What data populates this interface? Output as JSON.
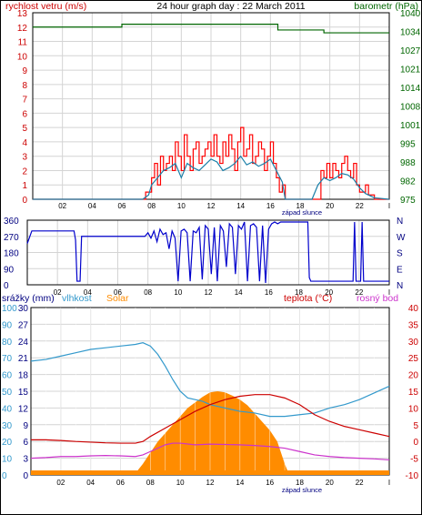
{
  "chart_data": [
    {
      "type": "line",
      "title": "24 hour graph day : 22 March 2011",
      "left_axis_label": "rychlost vetru (m/s)",
      "right_axis_label": "barometr (hPa)",
      "sunset_label": "západ slunce",
      "x_ticks": [
        "02",
        "04",
        "06",
        "08",
        "10",
        "12",
        "14",
        "16",
        "18",
        "20",
        "22",
        "I"
      ],
      "xlim_hours": [
        0,
        24
      ],
      "left_ticks": [
        "0",
        "1",
        "2",
        "3",
        "4",
        "5",
        "6",
        "7",
        "8",
        "9",
        "10",
        "11",
        "12",
        "13"
      ],
      "ylim_left": [
        0,
        13
      ],
      "right_ticks": [
        "975",
        "982",
        "988",
        "995",
        "1001",
        "1008",
        "1014",
        "1021",
        "1027",
        "1034",
        "1040"
      ],
      "ylim_right": [
        975,
        1040
      ],
      "grid": true,
      "series": [
        {
          "name": "rychlost vetru (m/s)",
          "color": "#ff0000",
          "axis": "left",
          "step": true,
          "x": [
            0,
            7.4,
            7.6,
            8.0,
            8.2,
            8.4,
            8.6,
            8.8,
            9.0,
            9.2,
            9.4,
            9.6,
            9.8,
            10.0,
            10.2,
            10.4,
            10.6,
            10.8,
            11.0,
            11.2,
            11.4,
            11.6,
            11.8,
            12.0,
            12.2,
            12.4,
            12.6,
            12.8,
            13.0,
            13.2,
            13.4,
            13.6,
            13.8,
            14.0,
            14.2,
            14.4,
            14.6,
            14.8,
            15.0,
            15.2,
            15.4,
            15.6,
            15.8,
            16.0,
            16.2,
            16.4,
            16.6,
            16.8,
            17.0,
            17.2,
            17.4,
            17.6,
            18.0,
            18.4,
            19.0,
            19.2,
            19.4,
            19.6,
            19.8,
            20.0,
            20.2,
            20.4,
            20.6,
            20.8,
            21.0,
            21.2,
            21.4,
            21.6,
            21.8,
            22.0,
            22.2,
            22.4,
            22.6,
            23.0,
            24.0
          ],
          "y": [
            0,
            0,
            0.5,
            1.5,
            2.5,
            1,
            3,
            2,
            2.5,
            3,
            2,
            4,
            3,
            2,
            4.5,
            3,
            2,
            3.5,
            4,
            2.5,
            3,
            3.5,
            4,
            3,
            4.5,
            3,
            2.5,
            4,
            3,
            4.5,
            3.5,
            2,
            4,
            5,
            3,
            3.5,
            4.5,
            2.5,
            3,
            4,
            3.5,
            2,
            3,
            4,
            2.5,
            1.5,
            0.5,
            1,
            0,
            0,
            0,
            0,
            0,
            0,
            0,
            0,
            2,
            1.5,
            2.5,
            1.5,
            2.5,
            2,
            1.5,
            2.5,
            3,
            2,
            1.5,
            2.5,
            1,
            0.5,
            0.5,
            1,
            0.3,
            0,
            0
          ]
        },
        {
          "name": "wind average",
          "color": "#1a7fa8",
          "axis": "left",
          "x": [
            0,
            7.4,
            7.8,
            8.0,
            8.4,
            8.8,
            9.2,
            9.6,
            10.0,
            10.4,
            10.8,
            11.2,
            11.6,
            12.0,
            12.4,
            12.8,
            13.2,
            13.6,
            14.0,
            14.4,
            14.8,
            15.2,
            15.6,
            16.0,
            16.4,
            16.8,
            17.0,
            18.8,
            19.2,
            19.6,
            20.0,
            20.4,
            20.8,
            21.2,
            21.6,
            22.0,
            22.4,
            23.0,
            24.0
          ],
          "y": [
            0,
            0,
            0.3,
            1,
            1.5,
            2,
            2.2,
            2.5,
            1.5,
            2.5,
            2.2,
            2,
            2.4,
            2.8,
            2.6,
            2,
            2.2,
            2.5,
            3,
            2.4,
            2.6,
            2.3,
            2.5,
            2.8,
            2,
            1.2,
            0,
            0,
            1,
            1.5,
            1.3,
            1.5,
            1.8,
            1.7,
            1.4,
            0.8,
            0.4,
            0.1,
            0
          ]
        },
        {
          "name": "barometr (hPa)",
          "color": "#006600",
          "axis": "right",
          "step": true,
          "x": [
            0,
            6.0,
            16.5,
            19.0,
            19.6,
            24.0
          ],
          "y": [
            1035,
            1036,
            1034,
            1034,
            1033,
            1033
          ]
        }
      ]
    },
    {
      "type": "line",
      "x_ticks": [
        "02",
        "04",
        "06",
        "08",
        "10",
        "12",
        "14",
        "16",
        "18",
        "20",
        "22",
        "I"
      ],
      "xlim_hours": [
        0,
        24
      ],
      "left_ticks": [
        "0",
        "90",
        "180",
        "270",
        "360"
      ],
      "ylim": [
        0,
        360
      ],
      "right_labels": [
        "N",
        "E",
        "S",
        "W",
        "N"
      ],
      "grid": true,
      "series": [
        {
          "name": "wind direction",
          "color": "#0000cc",
          "x": [
            0,
            0.3,
            0.5,
            3.0,
            3.1,
            3.2,
            3.3,
            3.5,
            3.6,
            7.8,
            8.0,
            8.2,
            8.4,
            8.6,
            8.8,
            9.0,
            9.2,
            9.4,
            9.6,
            9.8,
            10.0,
            10.2,
            10.4,
            10.6,
            10.8,
            11.0,
            11.2,
            11.4,
            11.6,
            11.8,
            12.0,
            12.2,
            12.4,
            12.6,
            12.8,
            13.0,
            13.2,
            13.4,
            13.6,
            13.8,
            14.0,
            14.2,
            14.4,
            14.6,
            14.8,
            15.0,
            15.2,
            15.4,
            15.6,
            15.8,
            16.0,
            16.2,
            16.4,
            16.6,
            16.8,
            17.0,
            18.6,
            18.7,
            18.8,
            21.6,
            21.7,
            21.8,
            22.1,
            22.2,
            22.3,
            24.0
          ],
          "y": [
            230,
            300,
            300,
            300,
            300,
            250,
            20,
            20,
            270,
            270,
            290,
            260,
            300,
            240,
            310,
            280,
            290,
            200,
            300,
            260,
            20,
            300,
            310,
            290,
            20,
            300,
            290,
            320,
            30,
            330,
            310,
            60,
            320,
            20,
            330,
            300,
            100,
            340,
            320,
            60,
            330,
            310,
            350,
            20,
            330,
            340,
            320,
            20,
            330,
            10,
            310,
            340,
            350,
            340,
            350,
            350,
            350,
            40,
            20,
            20,
            350,
            20,
            20,
            350,
            20,
            20
          ]
        }
      ]
    },
    {
      "type": "line",
      "labels": {
        "srazky": "srážky (mm)",
        "vlhkost": "vlhkost",
        "solar": "Solar",
        "teplota": "teplota (°C)",
        "rosny_bod": "rosný bod"
      },
      "sunset_label": "západ slunce",
      "x_ticks": [
        "02",
        "04",
        "06",
        "08",
        "10",
        "12",
        "14",
        "16",
        "18",
        "20",
        "22",
        "I"
      ],
      "xlim_hours": [
        0,
        24
      ],
      "srazky_ticks": [
        "0",
        "3",
        "6",
        "9",
        "12",
        "15",
        "18",
        "21",
        "24",
        "27",
        "30"
      ],
      "ylim_srazky": [
        0,
        30
      ],
      "vlhkost_ticks": [
        "0",
        "10",
        "20",
        "30",
        "40",
        "50",
        "60",
        "70",
        "80",
        "90",
        "100"
      ],
      "ylim_vlhkost": [
        0,
        100
      ],
      "teplota_ticks": [
        "-10",
        "-5",
        "0",
        "5",
        "10",
        "15",
        "20",
        "25",
        "30",
        "35",
        "40"
      ],
      "ylim_teplota": [
        -10,
        40
      ],
      "grid": true,
      "series": [
        {
          "name": "Solar",
          "color": "#ff8c00",
          "fill": true,
          "axis": "srazky",
          "x": [
            0,
            6.5,
            7.0,
            7.5,
            8.0,
            8.5,
            9.0,
            9.5,
            10.0,
            10.5,
            11.0,
            11.5,
            12.0,
            12.5,
            13.0,
            13.5,
            14.0,
            14.5,
            15.0,
            15.5,
            16.0,
            16.5,
            17.0,
            17.3,
            24.0
          ],
          "y": [
            0,
            0,
            0.3,
            2,
            4,
            6,
            7.5,
            9,
            10.5,
            12,
            13,
            14,
            14.8,
            15,
            14.8,
            14.2,
            13.5,
            12.5,
            11,
            9.5,
            8,
            6,
            2,
            0,
            0
          ]
        },
        {
          "name": "vlhkost",
          "color": "#3399cc",
          "axis": "vlhkost",
          "x": [
            0,
            1,
            2,
            3,
            4,
            5,
            6,
            7,
            7.5,
            8,
            8.5,
            9,
            9.5,
            10,
            10.5,
            11,
            11.5,
            12,
            13,
            14,
            15,
            16,
            17,
            18,
            19,
            20,
            21,
            22,
            23,
            24
          ],
          "y": [
            68,
            69,
            71,
            73,
            75,
            76,
            77,
            78,
            79,
            77,
            72,
            65,
            57,
            50,
            46,
            45,
            44,
            42,
            40,
            38,
            37,
            35,
            35,
            36,
            37,
            40,
            42,
            45,
            49,
            53
          ]
        },
        {
          "name": "teplota (°C)",
          "color": "#cc0000",
          "axis": "teplota",
          "x": [
            0,
            1,
            2,
            3,
            4,
            5,
            6,
            7,
            7.5,
            8,
            9,
            10,
            11,
            12,
            13,
            14,
            15,
            16,
            17,
            18,
            19,
            20,
            21,
            22,
            23,
            24
          ],
          "y": [
            0.5,
            0.5,
            0.3,
            0,
            -0.2,
            -0.4,
            -0.5,
            -0.5,
            0,
            1.5,
            4,
            6.5,
            9,
            11,
            12.5,
            13.5,
            14,
            14,
            13,
            11,
            8,
            6,
            4.5,
            3.5,
            2.5,
            1.5
          ]
        },
        {
          "name": "rosný bod",
          "color": "#cc33cc",
          "axis": "teplota",
          "x": [
            0,
            1,
            2,
            3,
            4,
            5,
            6,
            7,
            7.5,
            8,
            8.5,
            9,
            9.5,
            10,
            11,
            12,
            13,
            14,
            15,
            16,
            17,
            18,
            19,
            20,
            21,
            22,
            23,
            24
          ],
          "y": [
            -5,
            -4.8,
            -4.5,
            -4.5,
            -4.3,
            -4.2,
            -4.3,
            -4.5,
            -4,
            -3,
            -2,
            -1,
            -0.5,
            -0.5,
            -1,
            -0.8,
            -0.9,
            -1,
            -1.2,
            -1.5,
            -2,
            -3,
            -4,
            -4.5,
            -4.8,
            -5,
            -5.2,
            -5.5
          ]
        },
        {
          "name": "srážky (mm)",
          "color": "#ff8c00",
          "axis": "srazky",
          "x": [
            0,
            24
          ],
          "y": [
            0,
            0
          ]
        }
      ]
    }
  ]
}
